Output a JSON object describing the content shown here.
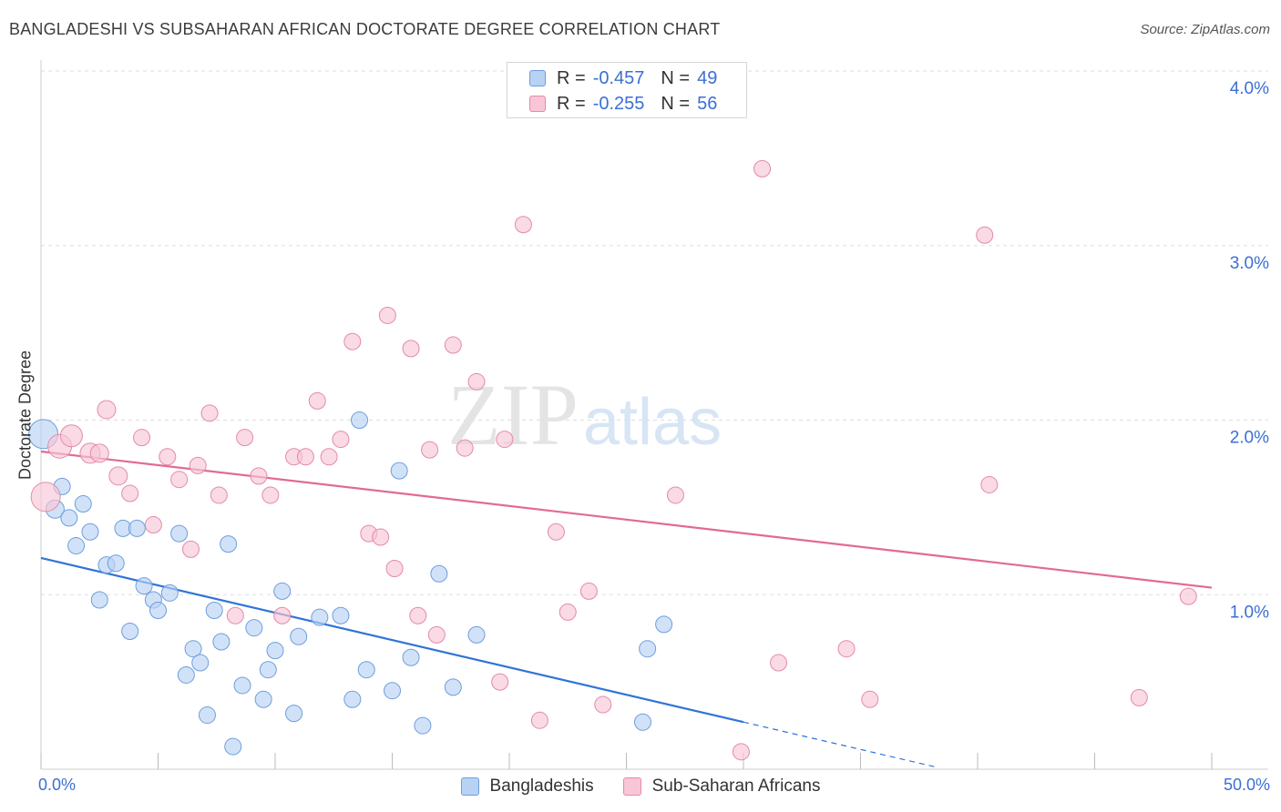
{
  "header": {
    "title": "BANGLADESHI VS SUBSAHARAN AFRICAN DOCTORATE DEGREE CORRELATION CHART",
    "source": "Source: ZipAtlas.com"
  },
  "watermark": {
    "part1": "ZIP",
    "part2": "atlas"
  },
  "legend_top": {
    "rows": [
      {
        "r_label": "R =",
        "r_value": "-0.457",
        "n_label": "N =",
        "n_value": "49"
      },
      {
        "r_label": "R =",
        "r_value": "-0.255",
        "n_label": "N =",
        "n_value": "56"
      }
    ]
  },
  "x_axis": {
    "min_label": "0.0%",
    "max_label": "50.0%"
  },
  "colors": {
    "blue_fill": "#b8d2f4",
    "blue_stroke": "#6e9edc",
    "blue_line": "#2f74d6",
    "pink_fill": "#f8c6d6",
    "pink_stroke": "#e48aa8",
    "pink_line": "#e26a93",
    "axis_text": "#3b6fd4",
    "grid": "#dddddd"
  },
  "chart_data": {
    "type": "scatter",
    "title": "BANGLADESHI VS SUBSAHARAN AFRICAN DOCTORATE DEGREE CORRELATION CHART",
    "xlabel": "",
    "ylabel": "Doctorate Degree",
    "xlim": [
      0,
      50
    ],
    "ylim": [
      0,
      4.0
    ],
    "y_ticks": [
      {
        "value": 1.0,
        "label": "1.0%"
      },
      {
        "value": 2.0,
        "label": "2.0%"
      },
      {
        "value": 3.0,
        "label": "3.0%"
      },
      {
        "value": 4.0,
        "label": "4.0%"
      }
    ],
    "x_tick_values": [
      0,
      5,
      10,
      15,
      20,
      25,
      30,
      35,
      40,
      45,
      50
    ],
    "legend": [
      "Bangladeshis",
      "Sub-Saharan Africans"
    ],
    "series": [
      {
        "name": "Bangladeshis",
        "color": "blue",
        "r": -0.457,
        "n": 49,
        "trend": {
          "x1": 0,
          "y1": 1.21,
          "x2": 30,
          "y2": 0.27,
          "dash_x_end": 38.2
        },
        "points": [
          [
            0.1,
            1.92,
            16
          ],
          [
            0.6,
            1.49,
            10
          ],
          [
            0.9,
            1.62,
            9
          ],
          [
            1.2,
            1.44,
            9
          ],
          [
            1.5,
            1.28,
            9
          ],
          [
            1.8,
            1.52,
            9
          ],
          [
            2.1,
            1.36,
            9
          ],
          [
            2.5,
            0.97,
            9
          ],
          [
            2.8,
            1.17,
            9
          ],
          [
            3.2,
            1.18,
            9
          ],
          [
            3.5,
            1.38,
            9
          ],
          [
            3.8,
            0.79,
            9
          ],
          [
            4.1,
            1.38,
            9
          ],
          [
            4.4,
            1.05,
            9
          ],
          [
            4.8,
            0.97,
            9
          ],
          [
            5.0,
            0.91,
            9
          ],
          [
            5.5,
            1.01,
            9
          ],
          [
            5.9,
            1.35,
            9
          ],
          [
            6.2,
            0.54,
            9
          ],
          [
            6.5,
            0.69,
            9
          ],
          [
            6.8,
            0.61,
            9
          ],
          [
            7.1,
            0.31,
            9
          ],
          [
            7.4,
            0.91,
            9
          ],
          [
            7.7,
            0.73,
            9
          ],
          [
            8.0,
            1.29,
            9
          ],
          [
            8.2,
            0.13,
            9
          ],
          [
            8.6,
            0.48,
            9
          ],
          [
            9.1,
            0.81,
            9
          ],
          [
            9.5,
            0.4,
            9
          ],
          [
            9.7,
            0.57,
            9
          ],
          [
            10.0,
            0.68,
            9
          ],
          [
            10.3,
            1.02,
            9
          ],
          [
            10.8,
            0.32,
            9
          ],
          [
            11.0,
            0.76,
            9
          ],
          [
            11.9,
            0.87,
            9
          ],
          [
            12.8,
            0.88,
            9
          ],
          [
            13.3,
            0.4,
            9
          ],
          [
            13.6,
            2.0,
            9
          ],
          [
            13.9,
            0.57,
            9
          ],
          [
            15.0,
            0.45,
            9
          ],
          [
            15.3,
            1.71,
            9
          ],
          [
            15.8,
            0.64,
            9
          ],
          [
            16.3,
            0.25,
            9
          ],
          [
            17.0,
            1.12,
            9
          ],
          [
            17.6,
            0.47,
            9
          ],
          [
            18.6,
            0.77,
            9
          ],
          [
            25.7,
            0.27,
            9
          ],
          [
            25.9,
            0.69,
            9
          ],
          [
            26.6,
            0.83,
            9
          ]
        ]
      },
      {
        "name": "Sub-Saharan Africans",
        "color": "pink",
        "r": -0.255,
        "n": 56,
        "trend": {
          "x1": 0,
          "y1": 1.82,
          "x2": 50,
          "y2": 1.04
        },
        "points": [
          [
            0.2,
            1.56,
            16
          ],
          [
            0.8,
            1.85,
            13
          ],
          [
            1.3,
            1.91,
            12
          ],
          [
            2.1,
            1.81,
            11
          ],
          [
            2.5,
            1.81,
            10
          ],
          [
            2.8,
            2.06,
            10
          ],
          [
            3.3,
            1.68,
            10
          ],
          [
            3.8,
            1.58,
            9
          ],
          [
            4.3,
            1.9,
            9
          ],
          [
            4.8,
            1.4,
            9
          ],
          [
            5.4,
            1.79,
            9
          ],
          [
            5.9,
            1.66,
            9
          ],
          [
            6.4,
            1.26,
            9
          ],
          [
            6.7,
            1.74,
            9
          ],
          [
            7.2,
            2.04,
            9
          ],
          [
            7.6,
            1.57,
            9
          ],
          [
            8.3,
            0.88,
            9
          ],
          [
            8.7,
            1.9,
            9
          ],
          [
            9.3,
            1.68,
            9
          ],
          [
            9.8,
            1.57,
            9
          ],
          [
            10.3,
            0.88,
            9
          ],
          [
            10.8,
            1.79,
            9
          ],
          [
            11.3,
            1.79,
            9
          ],
          [
            11.8,
            2.11,
            9
          ],
          [
            12.3,
            1.79,
            9
          ],
          [
            12.8,
            1.89,
            9
          ],
          [
            13.3,
            2.45,
            9
          ],
          [
            14.0,
            1.35,
            9
          ],
          [
            14.5,
            1.33,
            9
          ],
          [
            14.8,
            2.6,
            9
          ],
          [
            15.1,
            1.15,
            9
          ],
          [
            15.8,
            2.41,
            9
          ],
          [
            16.1,
            0.88,
            9
          ],
          [
            16.6,
            1.83,
            9
          ],
          [
            16.9,
            0.77,
            9
          ],
          [
            17.6,
            2.43,
            9
          ],
          [
            18.1,
            1.84,
            9
          ],
          [
            18.6,
            2.22,
            9
          ],
          [
            19.6,
            0.5,
            9
          ],
          [
            19.8,
            1.89,
            9
          ],
          [
            20.6,
            3.12,
            9
          ],
          [
            21.3,
            0.28,
            9
          ],
          [
            22.0,
            1.36,
            9
          ],
          [
            22.5,
            0.9,
            9
          ],
          [
            23.4,
            1.02,
            9
          ],
          [
            24.0,
            0.37,
            9
          ],
          [
            27.1,
            1.57,
            9
          ],
          [
            29.9,
            0.1,
            9
          ],
          [
            30.8,
            3.44,
            9
          ],
          [
            31.5,
            0.61,
            9
          ],
          [
            34.4,
            0.69,
            9
          ],
          [
            35.4,
            0.4,
            9
          ],
          [
            40.3,
            3.06,
            9
          ],
          [
            40.5,
            1.63,
            9
          ],
          [
            46.9,
            0.41,
            9
          ],
          [
            49.0,
            0.99,
            9
          ]
        ]
      }
    ]
  }
}
